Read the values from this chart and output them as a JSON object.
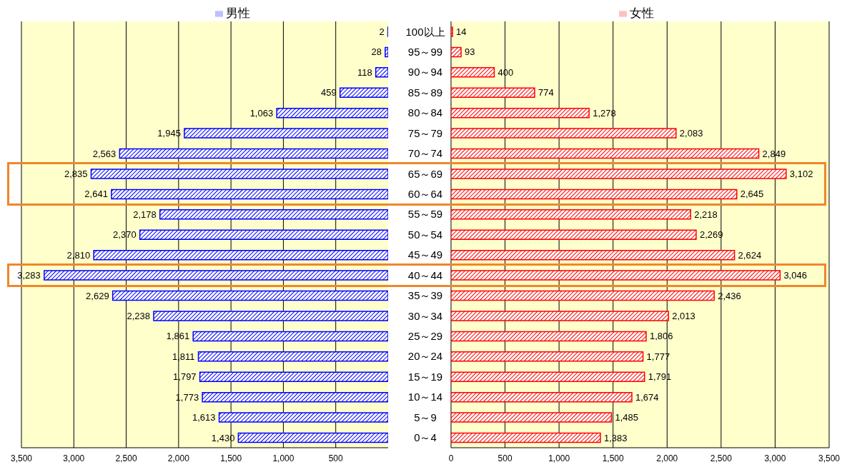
{
  "chart_data": [
    {
      "type": "bar",
      "orientation": "horizontal",
      "categories": [
        "100以上",
        "95～99",
        "90～94",
        "85～89",
        "80～84",
        "75～79",
        "70～74",
        "65～69",
        "60～64",
        "55～59",
        "50～54",
        "45～49",
        "40～44",
        "35～39",
        "30～34",
        "25～29",
        "20～24",
        "15～19",
        "10～14",
        "5～9",
        "0～4"
      ],
      "series": [
        {
          "name": "男性",
          "color": "#0000ff",
          "values": [
            2,
            28,
            118,
            459,
            1063,
            1945,
            2563,
            2835,
            2641,
            2178,
            2370,
            2810,
            3283,
            2629,
            2238,
            1861,
            1811,
            1797,
            1773,
            1613,
            1430
          ],
          "value_labels": [
            "2",
            "28",
            "118",
            "459",
            "1,063",
            "1,945",
            "2,563",
            "2,835",
            "2,641",
            "2,178",
            "2,370",
            "2,810",
            "3,283",
            "2,629",
            "2,238",
            "1,861",
            "1,811",
            "1,797",
            "1,773",
            "1,613",
            "1,430"
          ]
        }
      ],
      "xlim": [
        3500,
        0
      ],
      "xticks": [
        {
          "value": 3500,
          "label": "3,500"
        },
        {
          "value": 3000,
          "label": "3,000"
        },
        {
          "value": 2500,
          "label": "2,500"
        },
        {
          "value": 2000,
          "label": "2,000"
        },
        {
          "value": 1500,
          "label": "1,500"
        },
        {
          "value": 1000,
          "label": "1,000"
        },
        {
          "value": 500,
          "label": "500"
        }
      ],
      "grid": "x",
      "legend": "top"
    },
    {
      "type": "bar",
      "orientation": "horizontal",
      "categories": [
        null,
        null,
        null,
        null,
        null,
        null,
        null,
        null,
        null,
        null,
        null,
        null,
        null,
        null,
        null,
        null,
        null,
        null,
        null,
        null,
        null
      ],
      "series": [
        {
          "name": "女性",
          "color": "#ff0000",
          "values": [
            14,
            93,
            400,
            774,
            1278,
            2083,
            2849,
            3102,
            2645,
            2218,
            2269,
            2624,
            3046,
            2436,
            2013,
            1806,
            1777,
            1791,
            1674,
            1485,
            1383
          ],
          "value_labels": [
            "14",
            "93",
            "400",
            "774",
            "1,278",
            "2,083",
            "2,849",
            "3,102",
            "2,645",
            "2,218",
            "2,269",
            "2,624",
            "3,046",
            "2,436",
            "2,013",
            "1,806",
            "1,777",
            "1,791",
            "1,674",
            "1,485",
            "1,383"
          ]
        }
      ],
      "xlim": [
        0,
        3500
      ],
      "xticks": [
        {
          "value": 0,
          "label": "0"
        },
        {
          "value": 500,
          "label": "500"
        },
        {
          "value": 1000,
          "label": "1,000"
        },
        {
          "value": 1500,
          "label": "1,500"
        },
        {
          "value": 2000,
          "label": "2,000"
        },
        {
          "value": 2500,
          "label": "2,500"
        },
        {
          "value": 3000,
          "label": "3,000"
        },
        {
          "value": 3500,
          "label": "3,500"
        }
      ],
      "grid": "x",
      "legend": "top",
      "tick_labels": "x"
    }
  ]
}
